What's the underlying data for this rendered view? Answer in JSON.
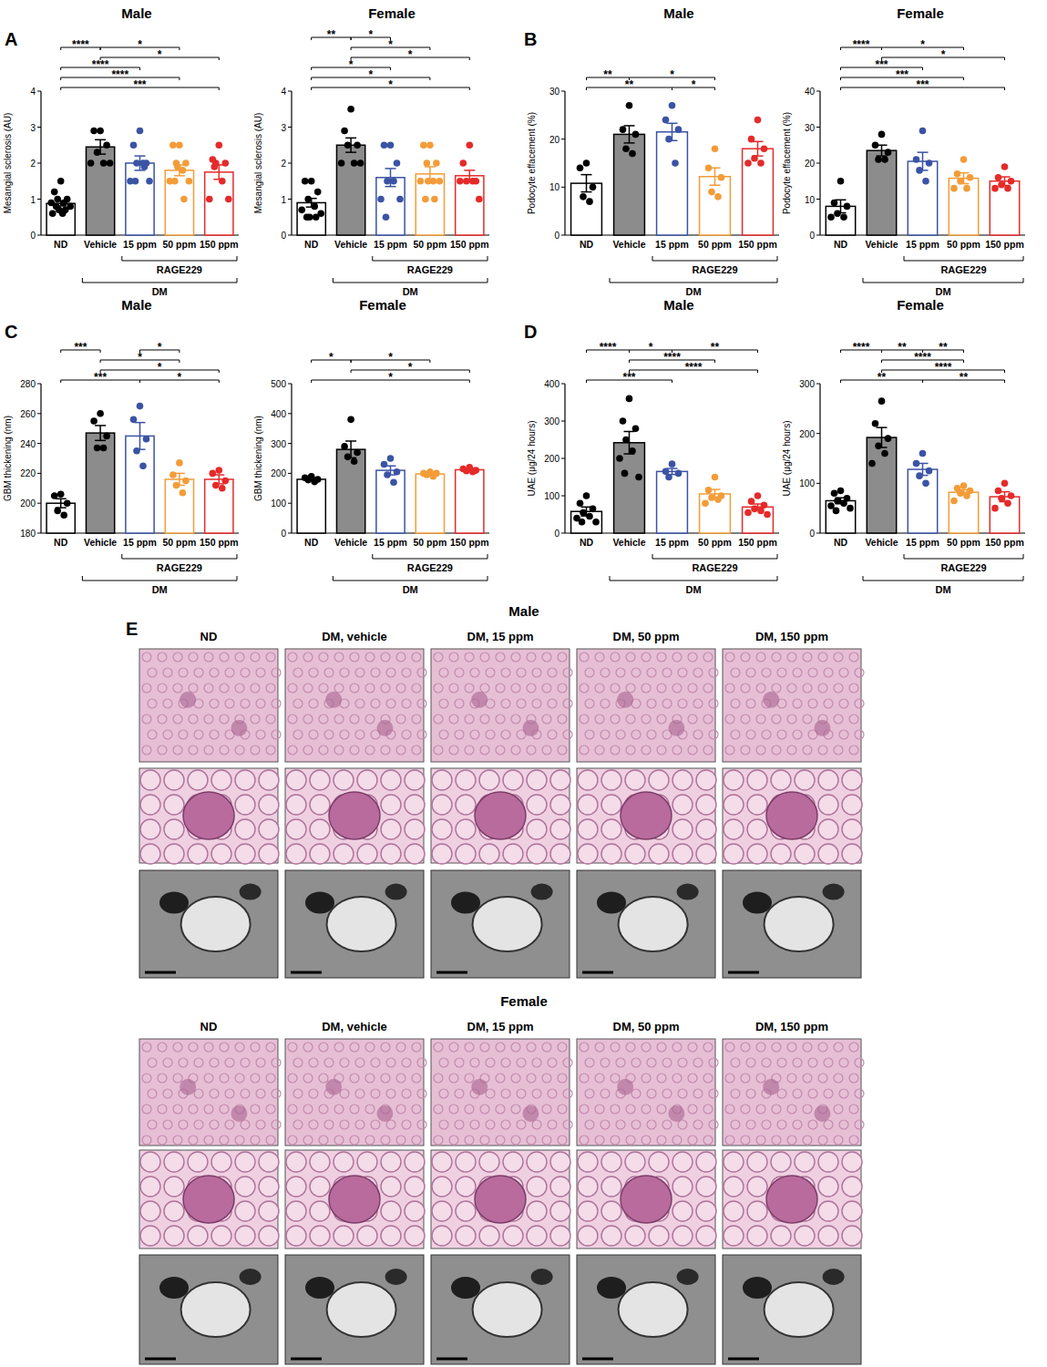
{
  "chart_data": [
    {
      "type": "bar",
      "panel_label": "A",
      "title": "Male",
      "y_label": "Mesangial sclerosis (AU)",
      "categories": [
        "ND",
        "Vehicle",
        "15 ppm",
        "50 ppm",
        "150 ppm"
      ],
      "values": [
        0.88,
        2.45,
        2.0,
        1.8,
        1.75
      ],
      "errors": [
        0.07,
        0.2,
        0.2,
        0.15,
        0.2
      ],
      "points": [
        [
          1.5,
          1.2,
          1.0,
          1.0,
          0.9,
          0.9,
          0.8,
          0.8,
          0.7,
          0.7,
          0.6,
          0.6
        ],
        [
          2.9,
          2.9,
          2.5,
          2.3,
          2.0,
          2.0,
          2.0
        ],
        [
          2.9,
          2.5,
          2.0,
          2.0,
          2.0,
          1.5,
          1.5,
          1.5,
          1.9
        ],
        [
          2.5,
          2.5,
          2.0,
          2.0,
          1.8,
          1.5,
          1.5,
          1.5,
          1.0,
          1.9
        ],
        [
          2.5,
          2.1,
          2.0,
          2.0,
          1.5,
          1.0,
          1.0,
          1.9
        ]
      ],
      "colors": [
        "#000000",
        "#000000",
        "#3a53a4",
        "#f39c38",
        "#e52a2a"
      ],
      "ylim": [
        0,
        4
      ],
      "yticks": [
        0,
        1,
        2,
        3,
        4
      ],
      "significance": [
        {
          "from": "Vehicle",
          "to": "50 ppm",
          "label": "*"
        },
        {
          "from": "ND",
          "to": "Vehicle",
          "label": "****"
        },
        {
          "from": "Vehicle",
          "to": "150 ppm",
          "label": "*"
        },
        {
          "from": "ND",
          "to": "15 ppm",
          "label": "****"
        },
        {
          "from": "ND",
          "to": "50 ppm",
          "label": "****"
        },
        {
          "from": "ND",
          "to": "150 ppm",
          "label": "***"
        }
      ],
      "groups": [
        {
          "label": "RAGE229",
          "categories": [
            "15 ppm",
            "50 ppm",
            "150 ppm"
          ]
        },
        {
          "label": "DM",
          "categories": [
            "Vehicle",
            "15 ppm",
            "50 ppm",
            "150 ppm"
          ]
        }
      ]
    },
    {
      "type": "bar",
      "title": "Female",
      "y_label": "Mesangial sclerosis (AU)",
      "categories": [
        "ND",
        "Vehicle",
        "15 ppm",
        "50 ppm",
        "150 ppm"
      ],
      "values": [
        0.9,
        2.5,
        1.6,
        1.7,
        1.65
      ],
      "errors": [
        0.12,
        0.2,
        0.25,
        0.2,
        0.15
      ],
      "points": [
        [
          1.5,
          1.5,
          1.2,
          1.0,
          0.8,
          0.7,
          0.6,
          0.5,
          0.5,
          0.5
        ],
        [
          3.5,
          2.9,
          2.5,
          2.5,
          2.0,
          2.0,
          2.0
        ],
        [
          2.5,
          2.5,
          2.0,
          1.5,
          1.5,
          1.0,
          1.0,
          0.5
        ],
        [
          2.5,
          2.5,
          2.0,
          2.0,
          1.5,
          1.5,
          1.5,
          1.0,
          1.0,
          1.5
        ],
        [
          2.5,
          2.0,
          1.5,
          1.5,
          1.5,
          1.5,
          1.0
        ]
      ],
      "colors": [
        "#000000",
        "#000000",
        "#3a53a4",
        "#f39c38",
        "#e52a2a"
      ],
      "ylim": [
        0,
        4
      ],
      "yticks": [
        0,
        1,
        2,
        3,
        4
      ],
      "significance": [
        {
          "from": "Vehicle",
          "to": "15 ppm",
          "label": "*"
        },
        {
          "from": "Vehicle",
          "to": "50 ppm",
          "label": "*"
        },
        {
          "from": "ND",
          "to": "Vehicle",
          "label": "**"
        },
        {
          "from": "Vehicle",
          "to": "150 ppm",
          "label": "*"
        },
        {
          "from": "ND",
          "to": "15 ppm",
          "label": "*"
        },
        {
          "from": "ND",
          "to": "50 ppm",
          "label": "*"
        },
        {
          "from": "ND",
          "to": "150 ppm",
          "label": "*"
        }
      ],
      "groups": [
        {
          "label": "RAGE229",
          "categories": [
            "15 ppm",
            "50 ppm",
            "150 ppm"
          ]
        },
        {
          "label": "DM",
          "categories": [
            "Vehicle",
            "15 ppm",
            "50 ppm",
            "150 ppm"
          ]
        }
      ]
    },
    {
      "type": "bar",
      "panel_label": "B",
      "title": "Male",
      "y_label": "Podocyte effacement (%)",
      "categories": [
        "ND",
        "Vehicle",
        "15 ppm",
        "50 ppm",
        "150 ppm"
      ],
      "values": [
        10.8,
        21,
        21.5,
        12.2,
        18
      ],
      "errors": [
        1.8,
        1.8,
        1.8,
        1.8,
        1.5
      ],
      "points": [
        [
          15,
          14,
          10,
          8,
          7
        ],
        [
          27,
          22,
          21,
          18,
          17
        ],
        [
          27,
          24,
          22,
          20,
          15
        ],
        [
          18,
          14,
          12,
          9,
          8
        ],
        [
          24,
          20,
          18,
          16,
          15,
          15
        ]
      ],
      "colors": [
        "#000000",
        "#000000",
        "#3a53a4",
        "#f39c38",
        "#e52a2a"
      ],
      "ylim": [
        0,
        30
      ],
      "yticks": [
        0,
        10,
        20,
        30
      ],
      "significance": [
        {
          "from": "ND",
          "to": "Vehicle",
          "label": "**"
        },
        {
          "from": "Vehicle",
          "to": "50 ppm",
          "label": "*"
        },
        {
          "from": "ND",
          "to": "15 ppm",
          "label": "**"
        },
        {
          "from": "15 ppm",
          "to": "50 ppm",
          "label": "*"
        }
      ],
      "groups": [
        {
          "label": "RAGE229",
          "categories": [
            "15 ppm",
            "50 ppm",
            "150 ppm"
          ]
        },
        {
          "label": "DM",
          "categories": [
            "Vehicle",
            "15 ppm",
            "50 ppm",
            "150 ppm"
          ]
        }
      ]
    },
    {
      "type": "bar",
      "title": "Female",
      "y_label": "Podocyte effacement (%)",
      "categories": [
        "ND",
        "Vehicle",
        "15 ppm",
        "50 ppm",
        "150 ppm"
      ],
      "values": [
        8,
        23.5,
        20.5,
        15.8,
        15
      ],
      "errors": [
        1.8,
        1.5,
        2.5,
        1.5,
        1.2
      ],
      "points": [
        [
          15,
          9,
          8,
          6,
          5,
          5
        ],
        [
          28,
          25,
          23,
          21,
          21
        ],
        [
          29,
          21,
          20,
          18,
          15
        ],
        [
          21,
          17,
          16,
          15,
          13,
          13
        ],
        [
          19,
          16,
          15,
          14,
          13,
          13
        ]
      ],
      "colors": [
        "#000000",
        "#000000",
        "#3a53a4",
        "#f39c38",
        "#e52a2a"
      ],
      "ylim": [
        0,
        40
      ],
      "yticks": [
        0,
        10,
        20,
        30,
        40
      ],
      "significance": [
        {
          "from": "Vehicle",
          "to": "50 ppm",
          "label": "*"
        },
        {
          "from": "ND",
          "to": "Vehicle",
          "label": "****"
        },
        {
          "from": "Vehicle",
          "to": "150 ppm",
          "label": "*"
        },
        {
          "from": "ND",
          "to": "15 ppm",
          "label": "***"
        },
        {
          "from": "ND",
          "to": "50 ppm",
          "label": "***"
        },
        {
          "from": "ND",
          "to": "150 ppm",
          "label": "***"
        }
      ],
      "groups": [
        {
          "label": "RAGE229",
          "categories": [
            "15 ppm",
            "50 ppm",
            "150 ppm"
          ]
        },
        {
          "label": "DM",
          "categories": [
            "Vehicle",
            "15 ppm",
            "50 ppm",
            "150 ppm"
          ]
        }
      ]
    },
    {
      "type": "bar",
      "panel_label": "C",
      "title": "Male",
      "y_label": "GBM thickening (nm)",
      "categories": [
        "ND",
        "Vehicle",
        "15 ppm",
        "50 ppm",
        "150 ppm"
      ],
      "values": [
        200,
        247,
        245,
        216,
        216
      ],
      "errors": [
        3,
        5,
        9,
        4,
        3
      ],
      "points": [
        [
          206,
          205,
          200,
          195,
          192
        ],
        [
          260,
          255,
          245,
          237,
          237
        ],
        [
          265,
          256,
          243,
          235,
          225
        ],
        [
          227,
          219,
          215,
          212,
          207
        ],
        [
          222,
          220,
          215,
          212,
          210
        ]
      ],
      "colors": [
        "#000000",
        "#000000",
        "#3a53a4",
        "#f39c38",
        "#e52a2a"
      ],
      "ylim": [
        180,
        280
      ],
      "yticks": [
        180,
        200,
        220,
        240,
        260,
        280
      ],
      "significance": [
        {
          "from": "15 ppm",
          "to": "50 ppm",
          "label": "*"
        },
        {
          "from": "Vehicle",
          "to": "50 ppm",
          "label": "*"
        },
        {
          "from": "ND",
          "to": "Vehicle",
          "label": "***"
        },
        {
          "from": "Vehicle",
          "to": "150 ppm",
          "label": "*"
        },
        {
          "from": "ND",
          "to": "15 ppm",
          "label": "***"
        },
        {
          "from": "15 ppm",
          "to": "150 ppm",
          "label": "*"
        }
      ],
      "groups": [
        {
          "label": "RAGE229",
          "categories": [
            "15 ppm",
            "50 ppm",
            "150 ppm"
          ]
        },
        {
          "label": "DM",
          "categories": [
            "Vehicle",
            "15 ppm",
            "50 ppm",
            "150 ppm"
          ]
        }
      ]
    },
    {
      "type": "bar",
      "title": "Female",
      "y_label": "GBM thickening (nm)",
      "categories": [
        "ND",
        "Vehicle",
        "15 ppm",
        "50 ppm",
        "150 ppm"
      ],
      "values": [
        180,
        280,
        210,
        198,
        212
      ],
      "errors": [
        5,
        28,
        15,
        5,
        5
      ],
      "points": [
        [
          190,
          185,
          180,
          178,
          172
        ],
        [
          380,
          290,
          270,
          255,
          240
        ],
        [
          250,
          230,
          205,
          195,
          170
        ],
        [
          205,
          200,
          200,
          195,
          190
        ],
        [
          220,
          215,
          210,
          208,
          205
        ]
      ],
      "colors": [
        "#000000",
        "#000000",
        "#3a53a4",
        "#f39c38",
        "#e52a2a"
      ],
      "ylim": [
        0,
        500
      ],
      "yticks": [
        0,
        100,
        200,
        300,
        400,
        500
      ],
      "significance": [
        {
          "from": "Vehicle",
          "to": "50 ppm",
          "label": "*"
        },
        {
          "from": "ND",
          "to": "Vehicle",
          "label": "*"
        },
        {
          "from": "Vehicle",
          "to": "150 ppm",
          "label": "*"
        },
        {
          "from": "ND",
          "to": "150 ppm",
          "label": "*"
        }
      ],
      "groups": [
        {
          "label": "RAGE229",
          "categories": [
            "15 ppm",
            "50 ppm",
            "150 ppm"
          ]
        },
        {
          "label": "DM",
          "categories": [
            "Vehicle",
            "15 ppm",
            "50 ppm",
            "150 ppm"
          ]
        }
      ]
    },
    {
      "type": "bar",
      "panel_label": "D",
      "title": "Male",
      "y_label": "UAE (μg/24 hours)",
      "categories": [
        "ND",
        "Vehicle",
        "15 ppm",
        "50 ppm",
        "150 ppm"
      ],
      "values": [
        58,
        242,
        165,
        105,
        70
      ],
      "errors": [
        12,
        30,
        8,
        12,
        8
      ],
      "points": [
        [
          100,
          80,
          65,
          55,
          45,
          40,
          30,
          30
        ],
        [
          360,
          300,
          280,
          250,
          220,
          200,
          150,
          160
        ],
        [
          185,
          165,
          160,
          150
        ],
        [
          150,
          115,
          100,
          95,
          90,
          80
        ],
        [
          100,
          85,
          75,
          65,
          60,
          55,
          50
        ]
      ],
      "colors": [
        "#000000",
        "#000000",
        "#3a53a4",
        "#f39c38",
        "#e52a2a"
      ],
      "ylim": [
        0,
        400
      ],
      "yticks": [
        0,
        100,
        200,
        300,
        400
      ],
      "significance": [
        {
          "from": "Vehicle",
          "to": "15 ppm",
          "label": "*"
        },
        {
          "from": "Vehicle",
          "to": "50 ppm",
          "label": "****"
        },
        {
          "from": "ND",
          "to": "Vehicle",
          "label": "****"
        },
        {
          "from": "Vehicle",
          "to": "150 ppm",
          "label": "****"
        },
        {
          "from": "ND",
          "to": "15 ppm",
          "label": "***"
        },
        {
          "from": "15 ppm",
          "to": "150 ppm",
          "label": "**"
        }
      ],
      "groups": [
        {
          "label": "RAGE229",
          "categories": [
            "15 ppm",
            "50 ppm",
            "150 ppm"
          ]
        },
        {
          "label": "DM",
          "categories": [
            "Vehicle",
            "15 ppm",
            "50 ppm",
            "150 ppm"
          ]
        }
      ]
    },
    {
      "type": "bar",
      "title": "Female",
      "y_label": "UAE (μg/24 hours)",
      "categories": [
        "ND",
        "Vehicle",
        "15 ppm",
        "50 ppm",
        "150 ppm"
      ],
      "values": [
        65,
        192,
        128,
        82,
        73
      ],
      "errors": [
        6,
        20,
        12,
        5,
        10
      ],
      "points": [
        [
          85,
          80,
          70,
          65,
          60,
          55,
          50,
          45
        ],
        [
          265,
          220,
          190,
          175,
          160,
          140
        ],
        [
          160,
          140,
          125,
          115,
          100
        ],
        [
          95,
          90,
          85,
          80,
          75,
          65
        ],
        [
          100,
          85,
          75,
          70,
          60,
          50
        ]
      ],
      "colors": [
        "#000000",
        "#000000",
        "#3a53a4",
        "#f39c38",
        "#e52a2a"
      ],
      "ylim": [
        0,
        300
      ],
      "yticks": [
        0,
        100,
        200,
        300
      ],
      "significance": [
        {
          "from": "Vehicle",
          "to": "15 ppm",
          "label": "**"
        },
        {
          "from": "Vehicle",
          "to": "50 ppm",
          "label": "****"
        },
        {
          "from": "ND",
          "to": "Vehicle",
          "label": "****"
        },
        {
          "from": "Vehicle",
          "to": "150 ppm",
          "label": "****"
        },
        {
          "from": "ND",
          "to": "15 ppm",
          "label": "**"
        },
        {
          "from": "15 ppm",
          "to": "50 ppm",
          "label": "**"
        },
        {
          "from": "15 ppm",
          "to": "150 ppm",
          "label": "**"
        }
      ],
      "groups": [
        {
          "label": "RAGE229",
          "categories": [
            "15 ppm",
            "50 ppm",
            "150 ppm"
          ]
        },
        {
          "label": "DM",
          "categories": [
            "Vehicle",
            "15 ppm",
            "50 ppm",
            "150 ppm"
          ]
        }
      ]
    }
  ],
  "figure_e": {
    "panel_label": "E",
    "sections": [
      {
        "title": "Male",
        "columns": [
          "ND",
          "DM, vehicle",
          "DM, 15 ppm",
          "DM, 50 ppm",
          "DM, 150 ppm"
        ]
      },
      {
        "title": "Female",
        "columns": [
          "ND",
          "DM, vehicle",
          "DM, 15 ppm",
          "DM, 50 ppm",
          "DM, 150 ppm"
        ]
      }
    ]
  }
}
